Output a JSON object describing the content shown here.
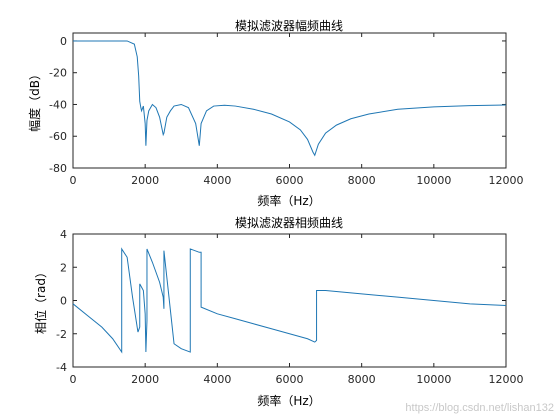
{
  "chart_data": [
    {
      "type": "line",
      "title": "模拟滤波器幅频曲线",
      "xlabel": "频率（Hz）",
      "ylabel": "幅度（dB）",
      "xlim": [
        0,
        12000
      ],
      "ylim": [
        -80,
        5
      ],
      "xticks": [
        0,
        2000,
        4000,
        6000,
        8000,
        10000,
        12000
      ],
      "yticks": [
        0,
        -20,
        -40,
        -60,
        -80
      ],
      "grid": false,
      "color": "#1f77b4",
      "series": [
        {
          "x": [
            0,
            1500,
            1700,
            1780,
            1820,
            1850,
            1880,
            1900,
            1950,
            2000,
            2020,
            2050,
            2100,
            2200,
            2300,
            2400,
            2500,
            2520,
            2600,
            2700,
            2800,
            3000,
            3200,
            3400,
            3500,
            3550,
            3700,
            3900,
            4200,
            4500,
            5000,
            5500,
            6000,
            6300,
            6500,
            6650,
            6700,
            6800,
            7000,
            7300,
            7700,
            8200,
            9000,
            10000,
            11000,
            12000
          ],
          "y": [
            0,
            0,
            -2,
            -10,
            -22,
            -38,
            -42,
            -44,
            -41,
            -52,
            -66,
            -50,
            -44,
            -40,
            -42,
            -48,
            -59,
            -58,
            -48,
            -44,
            -41,
            -40,
            -42,
            -52,
            -66,
            -52,
            -44,
            -41,
            -40.5,
            -41,
            -43,
            -46,
            -51,
            -56,
            -62,
            -70,
            -72,
            -65,
            -58,
            -53,
            -49,
            -46,
            -43,
            -41.5,
            -40.7,
            -40.3
          ]
        }
      ]
    },
    {
      "type": "line",
      "title": "模拟滤波器相频曲线",
      "xlabel": "频率（Hz）",
      "ylabel": "相位（rad）",
      "xlim": [
        0,
        12000
      ],
      "ylim": [
        -4,
        4
      ],
      "xticks": [
        0,
        2000,
        4000,
        6000,
        8000,
        10000,
        12000
      ],
      "yticks": [
        4,
        2,
        0,
        -2,
        -4
      ],
      "grid": false,
      "color": "#1f77b4",
      "series": [
        {
          "x": [
            0,
            400,
            800,
            1100,
            1350,
            1350,
            1500,
            1650,
            1800,
            1850,
            1850,
            1950,
            2000,
            2020,
            2020,
            2050,
            2050,
            2200,
            2400,
            2500,
            2520,
            2520,
            2800,
            3000,
            3250,
            3250,
            3500,
            3550,
            3550,
            4000,
            4500,
            5000,
            5500,
            6000,
            6500,
            6700,
            6750,
            6750,
            7000,
            8000,
            9000,
            10000,
            11000,
            12000
          ],
          "y": [
            -0.2,
            -0.9,
            -1.6,
            -2.3,
            -3.1,
            3.1,
            2.6,
            0.2,
            -1.9,
            -1.6,
            1.0,
            0.6,
            -0.8,
            -3.1,
            -3.1,
            -1.2,
            3.1,
            2.3,
            1.1,
            0.2,
            -0.5,
            3.0,
            -2.6,
            -2.9,
            -3.1,
            3.1,
            2.9,
            2.9,
            -0.4,
            -0.8,
            -1.1,
            -1.4,
            -1.7,
            -2.0,
            -2.3,
            -2.5,
            -2.4,
            0.6,
            0.6,
            0.4,
            0.2,
            0.0,
            -0.2,
            -0.3
          ]
        }
      ]
    }
  ],
  "watermark": "https://blog.csdn.net/lishan132"
}
